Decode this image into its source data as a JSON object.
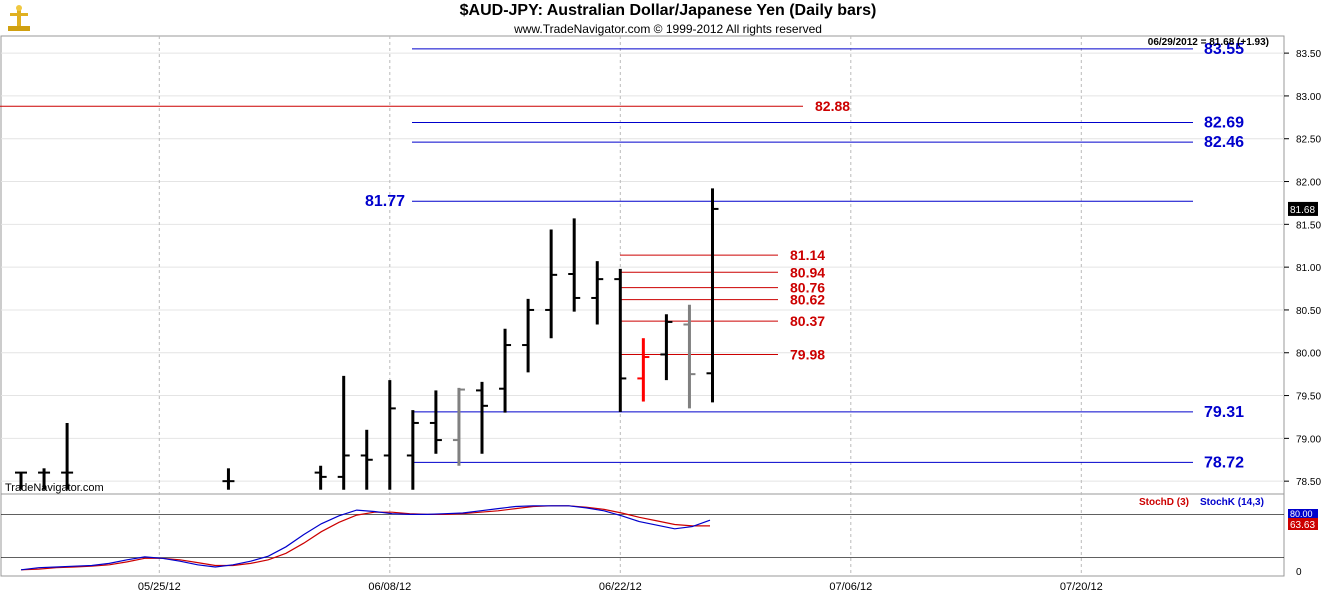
{
  "header": {
    "title": "$AUD-JPY:  Australian Dollar/Japanese Yen  (Daily bars)",
    "subtitle": "www.TradeNavigator.com © 1999-2012 All rights reserved",
    "last_quote": "06/29/2012 = 81.68 (+1.93)",
    "watermark": "TradeNavigator.com"
  },
  "chart_data": {
    "type": "bar",
    "subtype": "ohlc-daily",
    "price_axis": {
      "ylim": [
        78.35,
        83.7
      ],
      "ticks": [
        "78.50",
        "79.00",
        "79.50",
        "80.00",
        "80.50",
        "81.00",
        "81.50",
        "82.00",
        "82.50",
        "83.00",
        "83.50"
      ],
      "last_price_label": "81.68"
    },
    "date_axis": {
      "ticks": [
        "05/25/12",
        "06/08/12",
        "06/22/12",
        "07/06/12",
        "07/20/12"
      ]
    },
    "bars": [
      {
        "date": "05/17/12",
        "open": 78.6,
        "high": 78.6,
        "low": 78.4,
        "close": 78.6,
        "color": "#000000"
      },
      {
        "date": "05/18/12",
        "open": 78.6,
        "high": 78.65,
        "low": 78.4,
        "close": 78.6,
        "color": "#000000"
      },
      {
        "date": "05/21/12",
        "open": 78.6,
        "high": 79.18,
        "low": 78.4,
        "close": 78.6,
        "color": "#000000"
      },
      {
        "date": "05/30/12",
        "open": 78.5,
        "high": 78.65,
        "low": 78.4,
        "close": 78.5,
        "color": "#000000"
      },
      {
        "date": "06/05/12",
        "open": 78.6,
        "high": 78.68,
        "low": 78.4,
        "close": 78.55,
        "color": "#000000"
      },
      {
        "date": "06/06/12",
        "open": 78.55,
        "high": 79.73,
        "low": 78.4,
        "close": 78.8,
        "color": "#000000"
      },
      {
        "date": "06/07/12",
        "open": 78.8,
        "high": 79.1,
        "low": 78.4,
        "close": 78.75,
        "color": "#000000"
      },
      {
        "date": "06/08/12",
        "open": 78.8,
        "high": 79.68,
        "low": 78.4,
        "close": 79.35,
        "color": "#000000"
      },
      {
        "date": "06/11/12",
        "open": 78.8,
        "high": 79.33,
        "low": 78.4,
        "close": 79.18,
        "color": "#000000"
      },
      {
        "date": "06/12/12",
        "open": 79.18,
        "high": 79.56,
        "low": 78.82,
        "close": 78.98,
        "color": "#000000"
      },
      {
        "date": "06/13/12",
        "open": 78.98,
        "high": 79.59,
        "low": 78.68,
        "close": 79.57,
        "color": "#808080"
      },
      {
        "date": "06/14/12",
        "open": 79.56,
        "high": 79.66,
        "low": 78.82,
        "close": 79.38,
        "color": "#000000"
      },
      {
        "date": "06/15/12",
        "open": 79.58,
        "high": 80.28,
        "low": 79.3,
        "close": 80.09,
        "color": "#000000"
      },
      {
        "date": "06/18/12",
        "open": 80.09,
        "high": 80.63,
        "low": 79.77,
        "close": 80.5,
        "color": "#000000"
      },
      {
        "date": "06/19/12",
        "open": 80.5,
        "high": 81.44,
        "low": 80.17,
        "close": 80.91,
        "color": "#000000"
      },
      {
        "date": "06/20/12",
        "open": 80.92,
        "high": 81.57,
        "low": 80.48,
        "close": 80.64,
        "color": "#000000"
      },
      {
        "date": "06/21/12",
        "open": 80.64,
        "high": 81.07,
        "low": 80.33,
        "close": 80.86,
        "color": "#000000"
      },
      {
        "date": "06/22/12",
        "open": 80.86,
        "high": 80.98,
        "low": 79.31,
        "close": 79.7,
        "color": "#000000"
      },
      {
        "date": "06/25/12",
        "open": 79.7,
        "high": 80.17,
        "low": 79.43,
        "close": 79.95,
        "color": "#ff0000"
      },
      {
        "date": "06/26/12",
        "open": 79.98,
        "high": 80.45,
        "low": 79.68,
        "close": 80.36,
        "color": "#000000"
      },
      {
        "date": "06/27/12",
        "open": 80.33,
        "high": 80.56,
        "low": 79.35,
        "close": 79.75,
        "color": "#808080"
      },
      {
        "date": "06/28/12",
        "open": 79.76,
        "high": 81.92,
        "low": 79.42,
        "close": 81.68,
        "color": "#000000"
      }
    ],
    "levels": [
      {
        "label": "83.55",
        "value": 83.55,
        "color": "#0000cc",
        "label_side": "right"
      },
      {
        "label": "82.88",
        "value": 82.88,
        "color": "#cc0000",
        "label_side": "right"
      },
      {
        "label": "82.69",
        "value": 82.69,
        "color": "#0000cc",
        "label_side": "right"
      },
      {
        "label": "82.46",
        "value": 82.46,
        "color": "#0000cc",
        "label_side": "right"
      },
      {
        "label": "81.77",
        "value": 81.77,
        "color": "#0000cc",
        "label_side": "left"
      },
      {
        "label": "81.14",
        "value": 81.14,
        "color": "#cc0000",
        "label_side": "right"
      },
      {
        "label": "80.94",
        "value": 80.94,
        "color": "#cc0000",
        "label_side": "right"
      },
      {
        "label": "80.76",
        "value": 80.76,
        "color": "#cc0000",
        "label_side": "right"
      },
      {
        "label": "80.62",
        "value": 80.62,
        "color": "#cc0000",
        "label_side": "right"
      },
      {
        "label": "80.37",
        "value": 80.37,
        "color": "#cc0000",
        "label_side": "right"
      },
      {
        "label": "79.98",
        "value": 79.98,
        "color": "#cc0000",
        "label_side": "right"
      },
      {
        "label": "79.31",
        "value": 79.31,
        "color": "#0000cc",
        "label_side": "right"
      },
      {
        "label": "78.72",
        "value": 78.72,
        "color": "#0000cc",
        "label_side": "right"
      }
    ],
    "stochastic": {
      "ylim": [
        0,
        100
      ],
      "ticks": [
        "0"
      ],
      "reference_lines": [
        20,
        80
      ],
      "legend": [
        "StochD (3)",
        "StochK (14,3)"
      ],
      "value_labels": [
        "80.00",
        "63.63"
      ],
      "k_series": {
        "name": "StochK (14,3)",
        "color": "#0000cc",
        "values": [
          3,
          6,
          7,
          8,
          9,
          12,
          17,
          21,
          19,
          15,
          10,
          7,
          10,
          15,
          22,
          35,
          52,
          67,
          78,
          86,
          84,
          81,
          80,
          80,
          81,
          82,
          85,
          88,
          91,
          92,
          92,
          92,
          89,
          85,
          78,
          70,
          65,
          60,
          63,
          72
        ]
      },
      "d_series": {
        "name": "StochD (3)",
        "color": "#cc0000",
        "values": [
          3,
          4,
          6,
          7,
          8,
          10,
          14,
          19,
          19,
          17,
          13,
          9,
          9,
          12,
          17,
          26,
          40,
          56,
          69,
          79,
          83,
          83,
          81,
          80,
          80,
          81,
          83,
          85,
          88,
          91,
          92,
          92,
          90,
          87,
          82,
          76,
          71,
          66,
          64,
          64
        ]
      }
    }
  },
  "colors": {
    "grid": "#bbbbbb",
    "level_blue": "#0000cc",
    "level_red": "#cc0000",
    "logo": "#f0c020"
  }
}
